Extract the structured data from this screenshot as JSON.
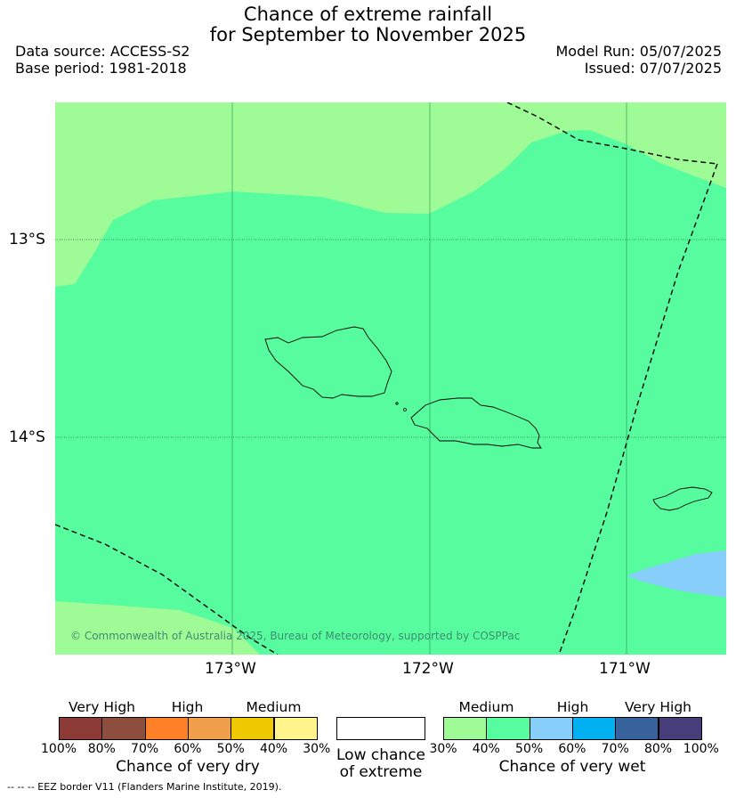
{
  "title": {
    "line1": "Chance of extreme rainfall",
    "line2": "for September to November 2025"
  },
  "meta": {
    "data_source": "Data source: ACCESS-S2",
    "base_period": "Base period: 1981-2018",
    "model_run": "Model Run: 05/07/2025",
    "issued": "Issued: 07/07/2025"
  },
  "map": {
    "lat_ticks": [
      "13°S",
      "14°S"
    ],
    "lon_ticks": [
      "173°W",
      "172°W",
      "171°W"
    ],
    "copyright": "© Commonwealth of Australia 2025, Bureau of Meteorology, supported by COSPPac",
    "regions": {
      "background_class": "Medium 30-40% wet",
      "main_class": "Medium 40-50% wet",
      "patch_class": "High 50-60% wet"
    }
  },
  "legend": {
    "dry": {
      "categories": [
        "Very High",
        "High",
        "Medium"
      ],
      "ticks": [
        "100%",
        "80%",
        "70%",
        "60%",
        "50%",
        "40%",
        "30%"
      ],
      "title": "Chance of very dry",
      "colors": [
        "#8b3a35",
        "#8d4e3e",
        "#ff8027",
        "#f0a04a",
        "#f0c800",
        "#fff58c"
      ]
    },
    "low": {
      "title_line1": "Low chance",
      "title_line2": "of extreme",
      "color": "#ffffff"
    },
    "wet": {
      "categories": [
        "Medium",
        "High",
        "Very High"
      ],
      "ticks": [
        "30%",
        "40%",
        "50%",
        "60%",
        "70%",
        "80%",
        "100%"
      ],
      "title": "Chance of very wet",
      "colors": [
        "#9efb96",
        "#57fc9f",
        "#87cefa",
        "#00b0f0",
        "#38629c",
        "#483d7b"
      ]
    }
  },
  "footnote": "--  --  -- EEZ border V11 (Flanders Marine Institute, 2019)."
}
